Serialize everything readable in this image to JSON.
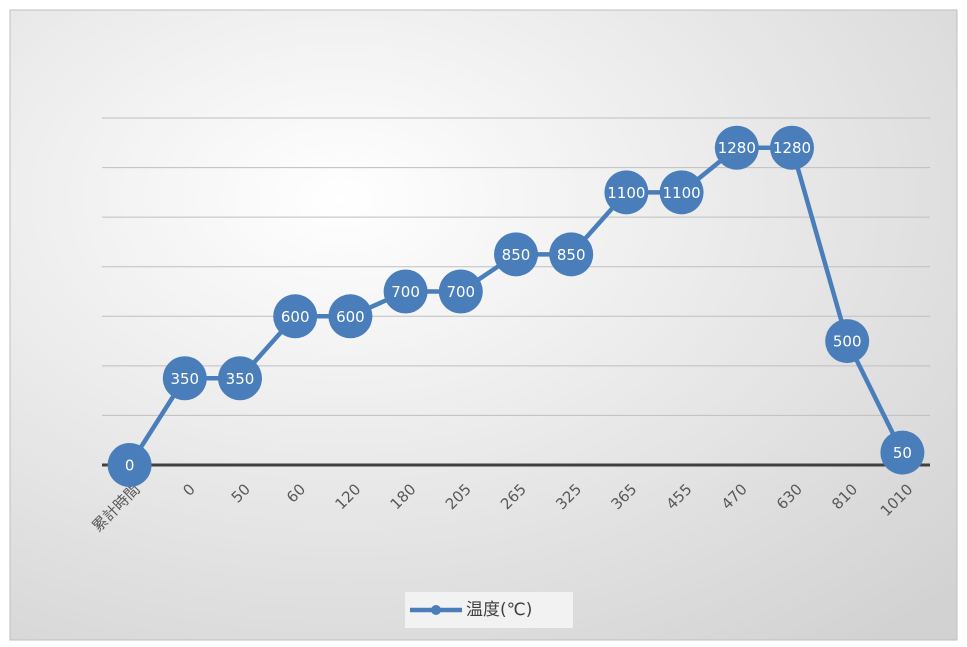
{
  "chart_data": {
    "type": "line",
    "categories": [
      "累計時間",
      "0",
      "50",
      "60",
      "120",
      "180",
      "205",
      "265",
      "325",
      "365",
      "455",
      "470",
      "630",
      "810",
      "1010"
    ],
    "series": [
      {
        "name": "温度(℃)",
        "color": "#4a7ebb",
        "values": [
          0,
          350,
          350,
          600,
          600,
          700,
          700,
          850,
          850,
          1100,
          1100,
          1280,
          1280,
          500,
          50
        ]
      }
    ],
    "ylim": [
      0,
      1400
    ],
    "yticks": [
      0,
      200,
      400,
      600,
      800,
      1000,
      1200,
      1400
    ],
    "grid": true,
    "legend": "bottom"
  }
}
